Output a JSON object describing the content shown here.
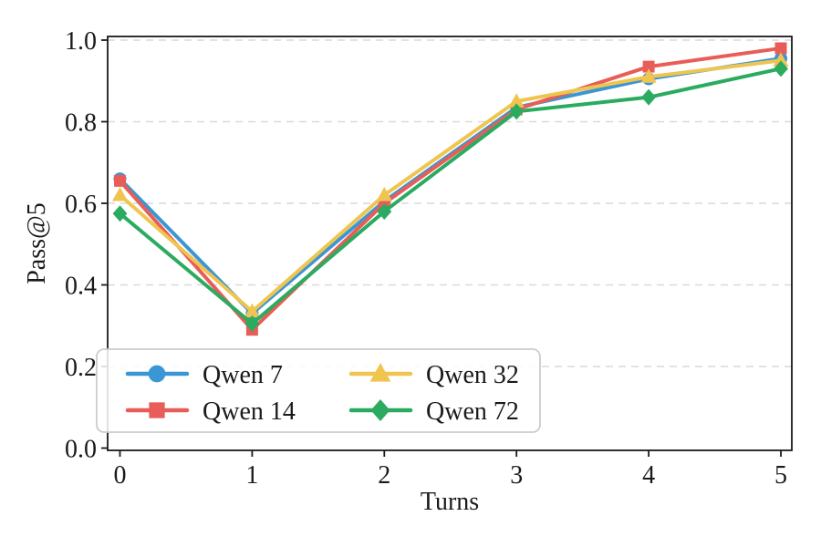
{
  "figure": {
    "background": "#ffffff",
    "axis_color": "#1a1a1a",
    "grid_color": "#d9d9d9",
    "legend_border_color": "#cccccc"
  },
  "chart_data": {
    "type": "line",
    "title": "",
    "xlabel": "Turns",
    "ylabel": "Pass@5",
    "x": [
      0,
      1,
      2,
      3,
      4,
      5
    ],
    "xticks": [
      "0",
      "1",
      "2",
      "3",
      "4",
      "5"
    ],
    "yticks": [
      "0.0",
      "0.2",
      "0.4",
      "0.6",
      "0.8",
      "1.0"
    ],
    "ytick_values": [
      0.0,
      0.2,
      0.4,
      0.6,
      0.8,
      1.0
    ],
    "xlim": [
      -0.25,
      5.25
    ],
    "ylim": [
      0.0,
      1.0
    ],
    "grid": true,
    "legend_position": "lower left, two columns",
    "series": [
      {
        "name": "Qwen 7",
        "color": "#3b96d5",
        "marker": "circle",
        "values": [
          0.66,
          0.33,
          0.605,
          0.835,
          0.905,
          0.955
        ]
      },
      {
        "name": "Qwen 14",
        "color": "#e85d57",
        "marker": "square",
        "values": [
          0.655,
          0.29,
          0.6,
          0.83,
          0.935,
          0.98
        ]
      },
      {
        "name": "Qwen 32",
        "color": "#efc550",
        "marker": "triangle",
        "values": [
          0.62,
          0.335,
          0.62,
          0.85,
          0.91,
          0.95
        ]
      },
      {
        "name": "Qwen 72",
        "color": "#2aab60",
        "marker": "diamond",
        "values": [
          0.575,
          0.305,
          0.58,
          0.825,
          0.86,
          0.93
        ]
      }
    ]
  }
}
